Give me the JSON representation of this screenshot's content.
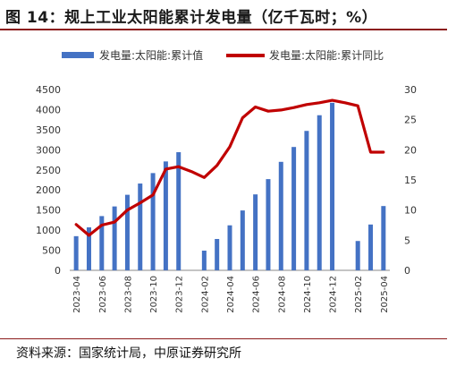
{
  "title": "图 14：规上工业太阳能累计发电量（亿千瓦时；%）",
  "source": "资料来源：国家统计局，中原证券研究所",
  "colors": {
    "bar": "#4472c4",
    "line": "#c00000",
    "accent": "#8b1a1a"
  },
  "chart_data": {
    "type": "bar+line",
    "categories": [
      "2023-04",
      "2023-05",
      "2023-06",
      "2023-07",
      "2023-08",
      "2023-09",
      "2023-10",
      "2023-11",
      "2023-12",
      "2024-01",
      "2024-02",
      "2024-03",
      "2024-04",
      "2024-05",
      "2024-06",
      "2024-07",
      "2024-08",
      "2024-09",
      "2024-10",
      "2024-11",
      "2024-12",
      "2025-01",
      "2025-02",
      "2025-03",
      "2025-04"
    ],
    "x_tick_labels": [
      "2023-04",
      "2023-06",
      "2023-08",
      "2023-10",
      "2023-12",
      "2024-02",
      "2024-04",
      "2024-06",
      "2024-08",
      "2024-10",
      "2024-12",
      "2025-02",
      "2025-04"
    ],
    "series": [
      {
        "name": "发电量:太阳能:累计值",
        "type": "bar",
        "axis": "left",
        "values": [
          850,
          1070,
          1350,
          1590,
          1880,
          2160,
          2420,
          2710,
          2940,
          null,
          490,
          780,
          1120,
          1490,
          1890,
          2270,
          2700,
          3070,
          3470,
          3860,
          4170,
          null,
          730,
          1140,
          1600
        ]
      },
      {
        "name": "发电量:太阳能:累计同比",
        "type": "line",
        "axis": "right",
        "values": [
          7.6,
          5.8,
          7.5,
          8.0,
          10.0,
          11.2,
          12.5,
          16.8,
          17.2,
          16.4,
          15.4,
          17.4,
          20.5,
          25.3,
          27.1,
          26.4,
          26.6,
          27.0,
          27.5,
          27.8,
          28.2,
          27.8,
          27.3,
          19.6,
          19.6
        ]
      }
    ],
    "y_left": {
      "min": 0,
      "max": 4500,
      "step": 500,
      "ticks": [
        "0",
        "500",
        "1000",
        "1500",
        "2000",
        "2500",
        "3000",
        "3500",
        "4000",
        "4500"
      ]
    },
    "y_right": {
      "min": 0,
      "max": 30,
      "step": 5,
      "ticks": [
        "0",
        "5",
        "10",
        "15",
        "20",
        "25",
        "30"
      ]
    },
    "legend_position": "top",
    "grid": false
  }
}
